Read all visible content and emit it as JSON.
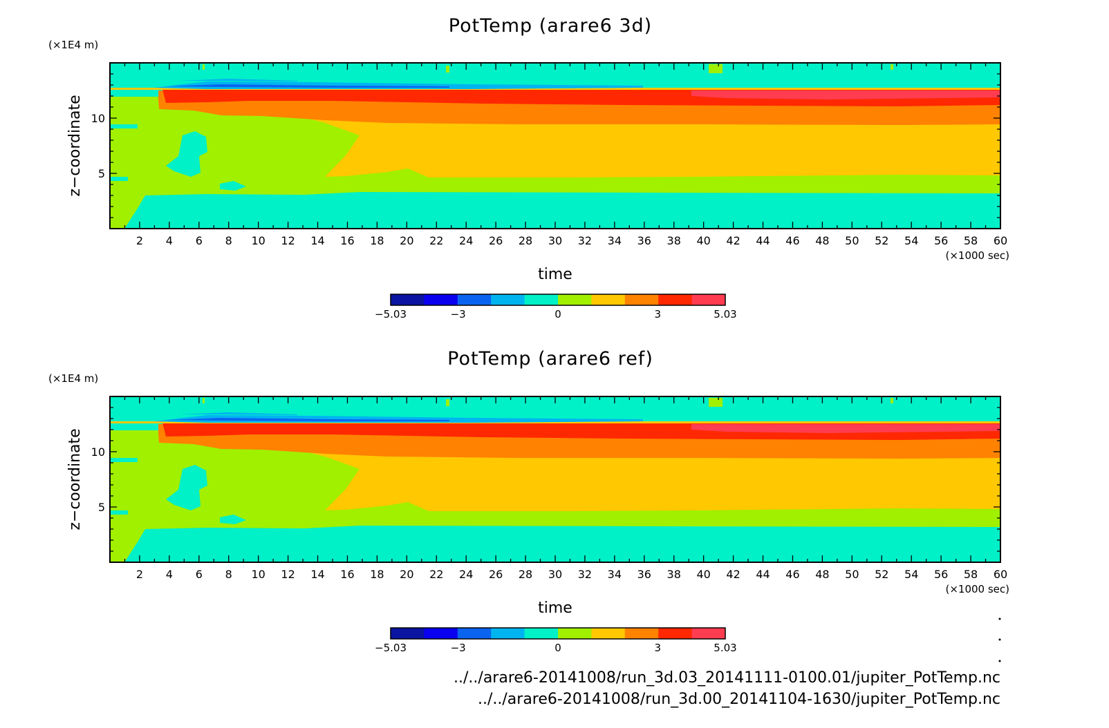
{
  "chart_data": [
    {
      "type": "heatmap",
      "title": "PotTemp (arare6 3d)",
      "xlabel": "time",
      "xunit": "(×1000 sec)",
      "ylabel": "z−coordinate",
      "yunit": "(×1E4 m)",
      "xlim": [
        0,
        60
      ],
      "ylim": [
        0,
        15
      ],
      "x_ticks": [
        "2",
        "4",
        "6",
        "8",
        "10",
        "12",
        "14",
        "16",
        "18",
        "20",
        "22",
        "24",
        "26",
        "28",
        "30",
        "32",
        "34",
        "36",
        "38",
        "40",
        "42",
        "44",
        "46",
        "48",
        "50",
        "52",
        "54",
        "56",
        "58",
        "60"
      ],
      "y_ticks": [
        "5",
        "10"
      ],
      "colorbar": {
        "range": [
          -5.03,
          5.03
        ],
        "tick_labels": [
          "−5.03",
          "−3",
          "0",
          "3",
          "5.03"
        ],
        "levels": 10
      },
      "layers_by_z": [
        {
          "z": [
            0,
            3.2
          ],
          "level": "0 to 1 (cyan)"
        },
        {
          "z": [
            3.2,
            4.8
          ],
          "level": "1 to 2 (green)"
        },
        {
          "z": [
            4.8,
            9.6
          ],
          "level": "2 to 3 (yellow-orange)"
        },
        {
          "z": [
            9.6,
            11.3
          ],
          "level": "3 to 4 (orange)"
        },
        {
          "z": [
            11.3,
            12.6
          ],
          "level": "4 to 5.03 (red)"
        },
        {
          "z": [
            12.6,
            15
          ],
          "level": "0 to 1 (cyan) with negative streaks near 13"
        }
      ]
    },
    {
      "type": "heatmap",
      "title": "PotTemp (arare6 ref)",
      "xlabel": "time",
      "xunit": "(×1000 sec)",
      "ylabel": "z−coordinate",
      "yunit": "(×1E4 m)",
      "xlim": [
        0,
        60
      ],
      "ylim": [
        0,
        15
      ],
      "x_ticks": [
        "2",
        "4",
        "6",
        "8",
        "10",
        "12",
        "14",
        "16",
        "18",
        "20",
        "22",
        "24",
        "26",
        "28",
        "30",
        "32",
        "34",
        "36",
        "38",
        "40",
        "42",
        "44",
        "46",
        "48",
        "50",
        "52",
        "54",
        "56",
        "58",
        "60"
      ],
      "y_ticks": [
        "5",
        "10"
      ],
      "colorbar": {
        "range": [
          -5.03,
          5.03
        ],
        "tick_labels": [
          "−5.03",
          "−3",
          "0",
          "3",
          "5.03"
        ],
        "levels": 10
      },
      "layers_by_z": [
        {
          "z": [
            0,
            3.2
          ],
          "level": "0 to 1 (cyan)"
        },
        {
          "z": [
            3.2,
            4.8
          ],
          "level": "1 to 2 (green)"
        },
        {
          "z": [
            4.8,
            9.6
          ],
          "level": "2 to 3 (yellow-orange)"
        },
        {
          "z": [
            9.6,
            11.3
          ],
          "level": "3 to 4 (orange)"
        },
        {
          "z": [
            11.3,
            12.6
          ],
          "level": "4 to 5.03 (red)"
        },
        {
          "z": [
            12.6,
            15
          ],
          "level": "0 to 1 (cyan) with negative streaks near 13"
        }
      ]
    }
  ],
  "colorbar_colors": [
    "#0a14a0",
    "#0a00f0",
    "#0a64f0",
    "#00b4f0",
    "#00f0c8",
    "#a0f000",
    "#ffc800",
    "#ff8200",
    "#ff2800",
    "#ff3c50"
  ],
  "field_colors": {
    "cyan": "#00f0c8",
    "green": "#a0f000",
    "yellow": "#ffc800",
    "orange": "#ff8200",
    "red": "#ff2800",
    "bright_red": "#ff3c50",
    "light_blue": "#00b4f0",
    "blue": "#0a64f0"
  },
  "footer": {
    "path_1": "../../arare6-20141008/run_3d.03_20141111-0100.01/jupiter_PotTemp.nc",
    "path_2": "../../arare6-20141008/run_3d.00_20141104-1630/jupiter_PotTemp.nc"
  }
}
